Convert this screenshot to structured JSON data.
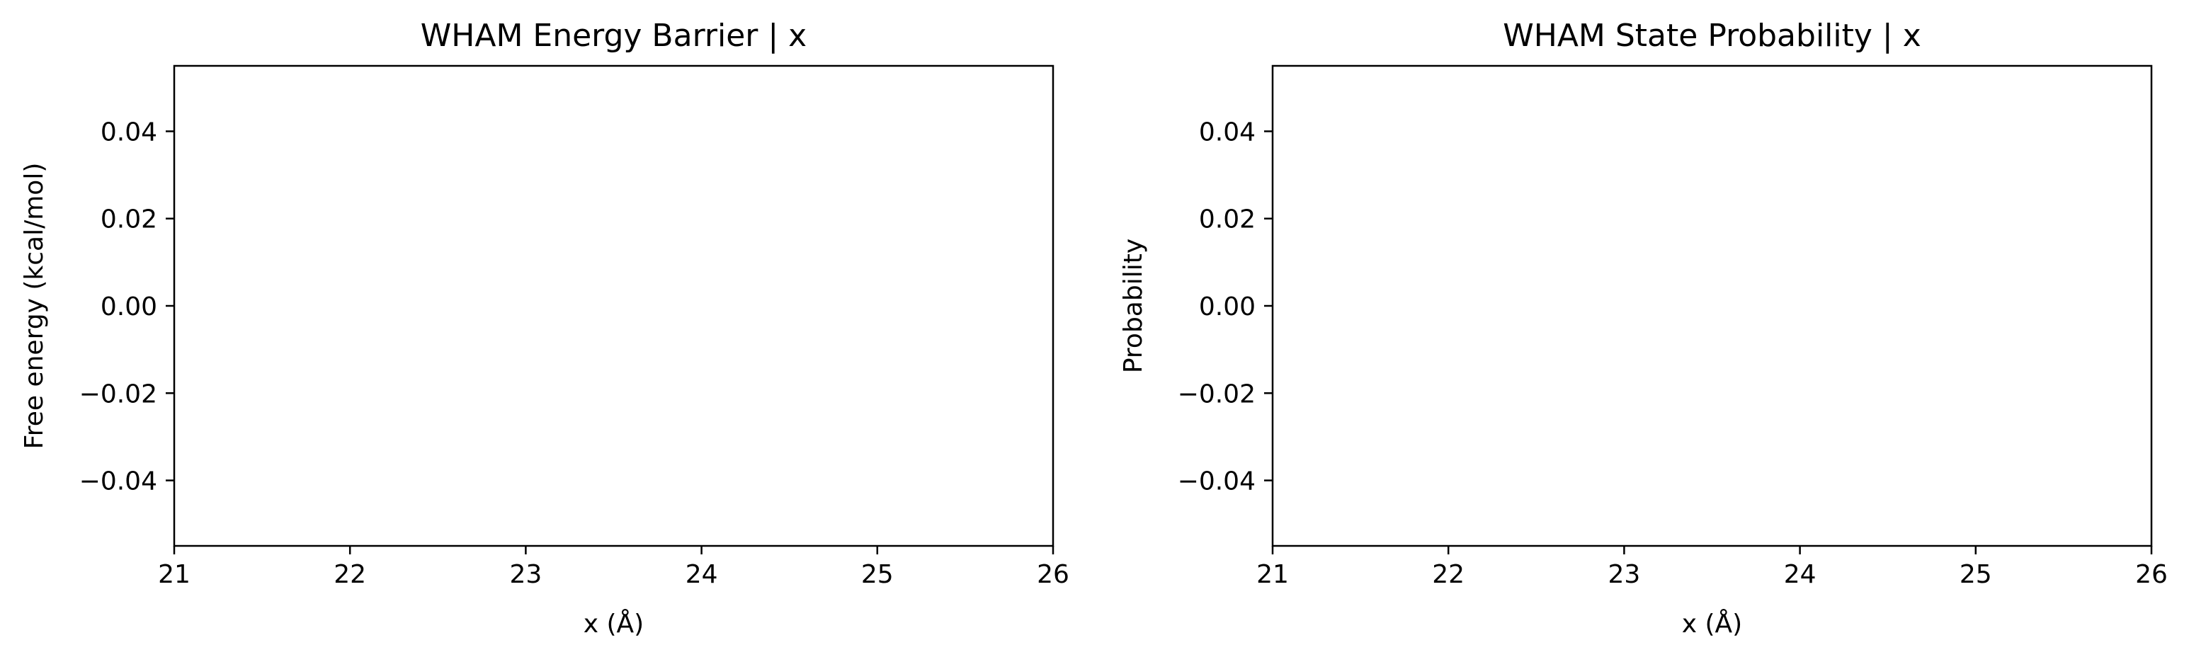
{
  "chart_data": [
    {
      "type": "line",
      "title": "WHAM Energy Barrier | x",
      "xlabel": "x (Å)",
      "ylabel": "Free energy (kcal/mol)",
      "xlim": [
        21,
        26
      ],
      "ylim": [
        -0.055,
        0.055
      ],
      "xticks": [
        21,
        22,
        23,
        24,
        25,
        26
      ],
      "yticks": [
        -0.04,
        -0.02,
        0.0,
        0.02,
        0.04
      ],
      "xtick_labels": [
        "21",
        "22",
        "23",
        "24",
        "25",
        "26"
      ],
      "ytick_labels": [
        "−0.04",
        "−0.02",
        "0.00",
        "0.02",
        "0.04"
      ],
      "grid": false,
      "series": []
    },
    {
      "type": "line",
      "title": "WHAM State Probability | x",
      "xlabel": "x (Å)",
      "ylabel": "Probability",
      "xlim": [
        21,
        26
      ],
      "ylim": [
        -0.055,
        0.055
      ],
      "xticks": [
        21,
        22,
        23,
        24,
        25,
        26
      ],
      "yticks": [
        -0.04,
        -0.02,
        0.0,
        0.02,
        0.04
      ],
      "xtick_labels": [
        "21",
        "22",
        "23",
        "24",
        "25",
        "26"
      ],
      "ytick_labels": [
        "−0.04",
        "−0.02",
        "0.00",
        "0.02",
        "0.04"
      ],
      "grid": false,
      "series": []
    }
  ],
  "colors": {
    "axis": "#000000",
    "background": "#ffffff"
  }
}
